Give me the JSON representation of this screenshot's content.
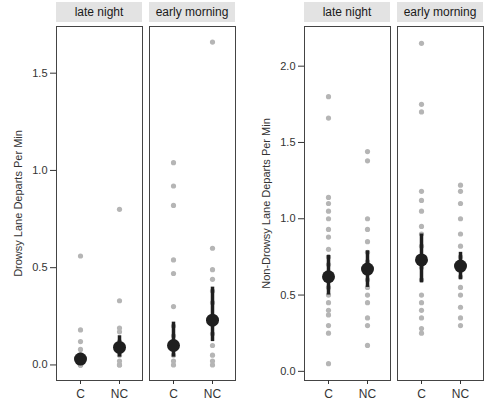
{
  "chart_data": [
    {
      "type": "scatter",
      "ylabel": "Drowsy Lane Departs Per Min",
      "categories": [
        "C",
        "NC"
      ],
      "ylim": [
        -0.08,
        1.74
      ],
      "yticks": [
        {
          "value": 0,
          "label": "0.0"
        },
        {
          "value": 0.5,
          "label": "0.5"
        },
        {
          "value": 1,
          "label": "1.0"
        },
        {
          "value": 1.5,
          "label": "1.5"
        }
      ],
      "facets": [
        {
          "name": "late night",
          "points": [
            [
              0.56,
              0.18,
              0.12,
              0.08,
              0.05,
              0.03,
              0.02,
              0.01,
              0,
              0,
              0,
              0
            ],
            [
              0.8,
              0.33,
              0.19,
              0.17,
              0.12,
              0.1,
              0.07,
              0.05,
              0.02,
              0,
              0
            ]
          ],
          "mean": [
            0.03,
            0.09
          ],
          "error_low": [
            0.01,
            0.04
          ],
          "error_high": [
            0.06,
            0.15
          ]
        },
        {
          "name": "early morning",
          "points": [
            [
              1.04,
              0.92,
              0.82,
              0.54,
              0.47,
              0.3,
              0.2,
              0.15,
              0.1,
              0.05,
              0.02,
              0
            ],
            [
              1.66,
              0.6,
              0.49,
              0.44,
              0.38,
              0.32,
              0.24,
              0.16,
              0.1,
              0.05,
              0.02,
              0
            ]
          ],
          "mean": [
            0.1,
            0.23
          ],
          "error_low": [
            0.04,
            0.12
          ],
          "error_high": [
            0.22,
            0.4
          ]
        }
      ]
    },
    {
      "type": "scatter",
      "ylabel": "Non-Drowsy Lane Departs Per Min",
      "categories": [
        "C",
        "NC"
      ],
      "ylim": [
        -0.06,
        2.26
      ],
      "yticks": [
        {
          "value": 0,
          "label": "0.0"
        },
        {
          "value": 0.5,
          "label": "0.5"
        },
        {
          "value": 1,
          "label": "1.0"
        },
        {
          "value": 1.5,
          "label": "1.5"
        },
        {
          "value": 2,
          "label": "2.0"
        }
      ],
      "facets": [
        {
          "name": "late night",
          "points": [
            [
              1.8,
              1.66,
              1.14,
              1.1,
              1.05,
              1.0,
              0.93,
              0.88,
              0.8,
              0.75,
              0.7,
              0.62,
              0.55,
              0.5,
              0.45,
              0.4,
              0.37,
              0.3,
              0.25,
              0.05
            ],
            [
              1.44,
              1.38,
              1.0,
              0.93,
              0.85,
              0.78,
              0.72,
              0.65,
              0.6,
              0.55,
              0.5,
              0.45,
              0.35,
              0.3,
              0.17
            ]
          ],
          "mean": [
            0.62,
            0.67
          ],
          "error_low": [
            0.5,
            0.55
          ],
          "error_high": [
            0.76,
            0.79
          ]
        },
        {
          "name": "early morning",
          "points": [
            [
              2.15,
              1.75,
              1.7,
              1.18,
              1.12,
              1.05,
              0.95,
              0.9,
              0.82,
              0.75,
              0.68,
              0.6,
              0.5,
              0.45,
              0.4,
              0.35,
              0.28,
              0.25
            ],
            [
              1.22,
              1.18,
              1.1,
              1.0,
              0.9,
              0.82,
              0.75,
              0.68,
              0.62,
              0.55,
              0.5,
              0.42,
              0.35,
              0.3
            ]
          ],
          "mean": [
            0.73,
            0.69
          ],
          "error_low": [
            0.58,
            0.6
          ],
          "error_high": [
            0.9,
            0.78
          ]
        }
      ]
    }
  ]
}
